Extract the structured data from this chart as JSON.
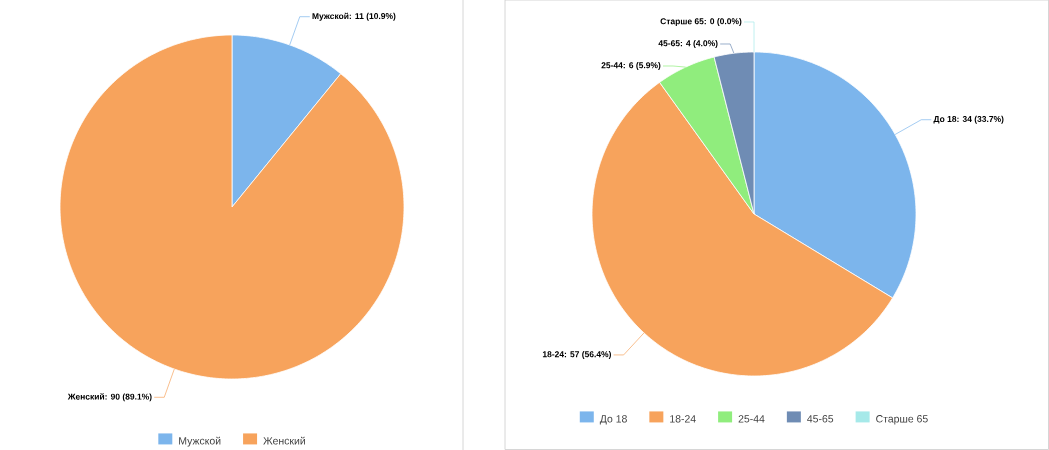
{
  "chart_data": [
    {
      "type": "pie",
      "categories": [
        "Мужской",
        "Женский"
      ],
      "values": [
        11,
        90
      ],
      "colors": [
        "#7cb5ec",
        "#f7a35c"
      ],
      "value_labels": [
        "Мужской: 11 (10.9%)",
        "Женский: 90 (89.1%)"
      ],
      "legend": "bottom"
    },
    {
      "type": "pie",
      "categories": [
        "До 18",
        "18-24",
        "25-44",
        "45-65",
        "Старше 65"
      ],
      "values": [
        34,
        57,
        6,
        4,
        0
      ],
      "colors": [
        "#7cb5ec",
        "#f7a35c",
        "#90ed7d",
        "#6f8cb4",
        "#a6e9e9"
      ],
      "value_labels": [
        "До 18: 34 (33.7%)",
        "18-24: 57 (56.4%)",
        "25-44: 6 (5.9%)",
        "45-65: 4 (4.0%)",
        "Старше 65: 0 (0.0%)"
      ],
      "legend": "bottom"
    }
  ]
}
